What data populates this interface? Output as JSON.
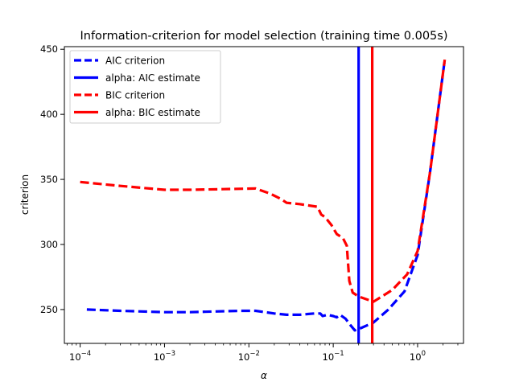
{
  "chart_data": {
    "type": "line",
    "title": "Information-criterion for model selection (training time 0.005s)",
    "xlabel": "α",
    "ylabel": "criterion",
    "xscale": "log",
    "xlim": [
      6.5e-05,
      3.5
    ],
    "ylim": [
      224,
      452
    ],
    "grid": false,
    "legend_position": "top-left",
    "x_ticks": [
      {
        "value": 0.0001,
        "base": "10",
        "exp": "−4"
      },
      {
        "value": 0.001,
        "base": "10",
        "exp": "−3"
      },
      {
        "value": 0.01,
        "base": "10",
        "exp": "−2"
      },
      {
        "value": 0.1,
        "base": "10",
        "exp": "−1"
      },
      {
        "value": 1,
        "base": "10",
        "exp": "0"
      }
    ],
    "y_ticks": [
      250,
      300,
      350,
      400,
      450
    ],
    "series": [
      {
        "name": "AIC criterion",
        "color": "#0000ff",
        "style": "dashed",
        "x": [
          0.00012,
          0.0003,
          0.001,
          0.002,
          0.004,
          0.008,
          0.012,
          0.02,
          0.028,
          0.04,
          0.06,
          0.07,
          0.075,
          0.085,
          0.1,
          0.11,
          0.12,
          0.14,
          0.16,
          0.18,
          0.2,
          0.3,
          0.45,
          0.7,
          1.0,
          1.4,
          2.1
        ],
        "y": [
          250,
          249,
          248,
          248,
          248.5,
          249,
          249,
          247,
          246,
          246,
          247,
          247,
          245,
          246,
          245,
          244,
          246,
          243,
          238,
          234,
          235,
          240,
          250,
          264,
          292,
          355,
          442
        ]
      },
      {
        "name": "BIC criterion",
        "color": "#ff0000",
        "style": "dashed",
        "x": [
          0.0001,
          0.0003,
          0.001,
          0.002,
          0.005,
          0.012,
          0.018,
          0.024,
          0.028,
          0.04,
          0.065,
          0.072,
          0.08,
          0.095,
          0.11,
          0.13,
          0.145,
          0.155,
          0.17,
          0.2,
          0.3,
          0.5,
          0.75,
          1.0,
          1.4,
          2.1
        ],
        "y": [
          348,
          345,
          342,
          342,
          342.5,
          343,
          339,
          335,
          332,
          331,
          329,
          323,
          321,
          315,
          308,
          305,
          299,
          272,
          263,
          260,
          256,
          265,
          277,
          295,
          355,
          442
        ]
      }
    ],
    "vlines": [
      {
        "name": "alpha: AIC estimate",
        "x": 0.2,
        "color": "#0000ff"
      },
      {
        "name": "alpha: BIC estimate",
        "x": 0.29,
        "color": "#ff0000"
      }
    ]
  }
}
